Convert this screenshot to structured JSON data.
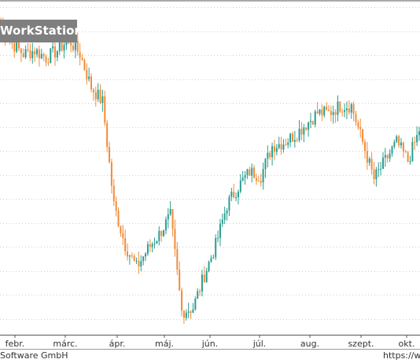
{
  "watermark": {
    "text": "WorkStation"
  },
  "footer": {
    "left": "Software GmbH",
    "right": "https://wo"
  },
  "colors": {
    "up": "#2a9d8f",
    "down": "#f28c38",
    "grid": "#d0d0d0",
    "axis": "#555555"
  },
  "chart_data": {
    "type": "candlestick",
    "title": "",
    "xlabel": "",
    "ylabel": "",
    "grid": "horizontal dotted",
    "x_ticks": [
      "febr.",
      "márc.",
      "ápr.",
      "máj.",
      "jún.",
      "júl.",
      "aug.",
      "szept.",
      "okt."
    ],
    "weekly_closes_approx": [
      {
        "period": "jan. 1",
        "close": 93
      },
      {
        "period": "jan. 2",
        "close": 88
      },
      {
        "period": "jan. 3",
        "close": 85
      },
      {
        "period": "jan. 4",
        "close": 86
      },
      {
        "period": "febr. 1",
        "close": 84
      },
      {
        "period": "febr. 2",
        "close": 86
      },
      {
        "period": "febr. 3",
        "close": 89
      },
      {
        "period": "febr. 4",
        "close": 85
      },
      {
        "period": "márc. 1",
        "close": 76
      },
      {
        "period": "márc. 2",
        "close": 72
      },
      {
        "period": "márc. 3",
        "close": 44
      },
      {
        "period": "márc. 4",
        "close": 33
      },
      {
        "period": "ápr. 1",
        "close": 27
      },
      {
        "period": "ápr. 2",
        "close": 32
      },
      {
        "period": "ápr. 3",
        "close": 36
      },
      {
        "period": "ápr. 4",
        "close": 41
      },
      {
        "period": "máj. 1",
        "close": 15
      },
      {
        "period": "máj. 2",
        "close": 16
      },
      {
        "period": "máj. 3",
        "close": 25
      },
      {
        "period": "máj. 4",
        "close": 33
      },
      {
        "period": "jún. 1",
        "close": 44
      },
      {
        "period": "jún. 2",
        "close": 49
      },
      {
        "period": "jún. 3",
        "close": 53
      },
      {
        "period": "jún. 4",
        "close": 52
      },
      {
        "period": "júl. 1",
        "close": 60
      },
      {
        "period": "júl. 2",
        "close": 61
      },
      {
        "period": "júl. 3",
        "close": 63
      },
      {
        "period": "júl. 4",
        "close": 66
      },
      {
        "period": "aug. 1",
        "close": 69
      },
      {
        "period": "aug. 2",
        "close": 69
      },
      {
        "period": "aug. 3",
        "close": 71
      },
      {
        "period": "aug. 4",
        "close": 71
      },
      {
        "period": "szept. 1",
        "close": 61
      },
      {
        "period": "szept. 2",
        "close": 51
      },
      {
        "period": "szept. 3",
        "close": 56
      },
      {
        "period": "szept. 4",
        "close": 61
      },
      {
        "period": "okt. 1",
        "close": 56
      },
      {
        "period": "okt. 2",
        "close": 64
      }
    ]
  }
}
